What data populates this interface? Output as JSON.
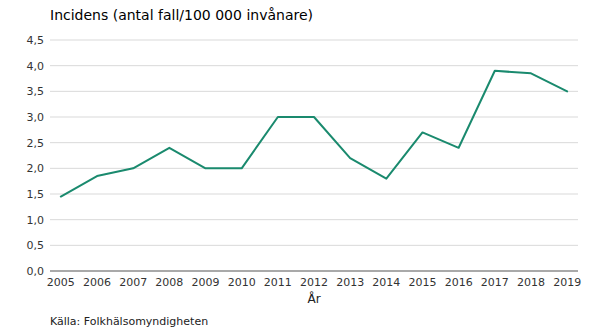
{
  "chart_data": {
    "type": "line",
    "title": "Incidens (antal fall/100 000 invånare)",
    "x_label": "År",
    "source": "Källa: Folkhälsomyndigheten",
    "x": [
      2005,
      2006,
      2007,
      2008,
      2009,
      2010,
      2011,
      2012,
      2013,
      2014,
      2015,
      2016,
      2017,
      2018,
      2019
    ],
    "values": [
      1.45,
      1.85,
      2.0,
      2.4,
      2.0,
      2.0,
      3.0,
      3.0,
      2.2,
      1.8,
      2.7,
      2.4,
      3.9,
      3.85,
      3.5
    ],
    "color": "#1a8a6e",
    "xlim": [
      2004.7,
      2019.3
    ],
    "xticks": [
      2005,
      2006,
      2007,
      2008,
      2009,
      2010,
      2011,
      2012,
      2013,
      2014,
      2015,
      2016,
      2017,
      2018,
      2019
    ],
    "ylim": [
      0,
      4.5
    ],
    "yticks": [
      {
        "value": 0.0,
        "label": "0,0"
      },
      {
        "value": 0.5,
        "label": "0,5"
      },
      {
        "value": 1.0,
        "label": "1,0"
      },
      {
        "value": 1.5,
        "label": "1,5"
      },
      {
        "value": 2.0,
        "label": "2,0"
      },
      {
        "value": 2.5,
        "label": "2,5"
      },
      {
        "value": 3.0,
        "label": "3,0"
      },
      {
        "value": 3.5,
        "label": "3,5"
      },
      {
        "value": 4.0,
        "label": "4,0"
      },
      {
        "value": 4.5,
        "label": "4,5"
      }
    ],
    "grid": true
  }
}
